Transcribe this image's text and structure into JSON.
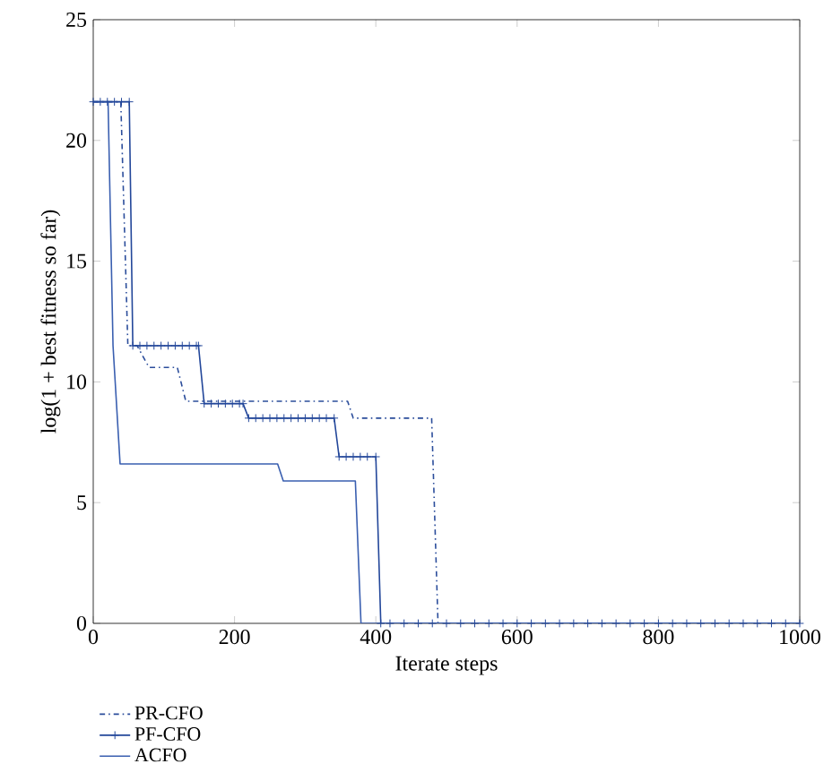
{
  "chart_data": {
    "type": "line",
    "xlabel": "Iterate steps",
    "ylabel": "log(1 + best fitness so far)",
    "xlim": [
      0,
      1000
    ],
    "ylim": [
      0,
      25
    ],
    "xticks": [
      0,
      200,
      400,
      600,
      800,
      1000
    ],
    "yticks": [
      0,
      5,
      10,
      15,
      20,
      25
    ],
    "legend": "bottom left",
    "series": [
      {
        "name": "PR-CFO",
        "color": "#2b4d9b",
        "line_style": "dashdot",
        "marker": "none",
        "x": [
          0,
          39,
          49,
          62,
          79,
          119,
          131,
          360,
          368,
          479,
          488,
          1000
        ],
        "values": [
          21.6,
          21.6,
          11.5,
          11.5,
          10.6,
          10.6,
          9.2,
          9.2,
          8.5,
          8.5,
          0,
          0
        ]
      },
      {
        "name": "PF-CFO",
        "color": "#23479a",
        "line_style": "solid",
        "marker": "cross",
        "x": [
          0,
          10,
          20,
          30,
          40,
          51,
          56,
          66,
          76,
          86,
          96,
          106,
          116,
          126,
          136,
          146,
          149,
          157,
          167,
          177,
          187,
          197,
          207,
          212,
          220,
          230,
          240,
          250,
          260,
          270,
          280,
          290,
          300,
          310,
          320,
          330,
          341,
          348,
          358,
          368,
          378,
          388,
          400,
          407,
          420,
          440,
          460,
          480,
          500,
          520,
          540,
          560,
          580,
          600,
          620,
          640,
          660,
          680,
          700,
          720,
          740,
          760,
          780,
          800,
          820,
          840,
          860,
          880,
          900,
          920,
          940,
          960,
          980,
          1000
        ],
        "values": [
          21.6,
          21.6,
          21.6,
          21.6,
          21.6,
          21.6,
          11.5,
          11.5,
          11.5,
          11.5,
          11.5,
          11.5,
          11.5,
          11.5,
          11.5,
          11.5,
          11.5,
          9.1,
          9.1,
          9.1,
          9.1,
          9.1,
          9.1,
          9.1,
          8.5,
          8.5,
          8.5,
          8.5,
          8.5,
          8.5,
          8.5,
          8.5,
          8.5,
          8.5,
          8.5,
          8.5,
          8.5,
          6.9,
          6.9,
          6.9,
          6.9,
          6.9,
          6.9,
          0,
          0,
          0,
          0,
          0,
          0,
          0,
          0,
          0,
          0,
          0,
          0,
          0,
          0,
          0,
          0,
          0,
          0,
          0,
          0,
          0,
          0,
          0,
          0,
          0,
          0,
          0,
          0,
          0,
          0,
          0
        ]
      },
      {
        "name": "ACFO",
        "color": "#3a5fb0",
        "line_style": "solid",
        "marker": "none",
        "x": [
          0,
          21,
          28,
          38,
          261,
          269,
          371,
          379,
          1000
        ],
        "values": [
          21.6,
          21.6,
          11.5,
          6.6,
          6.6,
          5.9,
          5.9,
          0,
          0
        ]
      }
    ]
  }
}
